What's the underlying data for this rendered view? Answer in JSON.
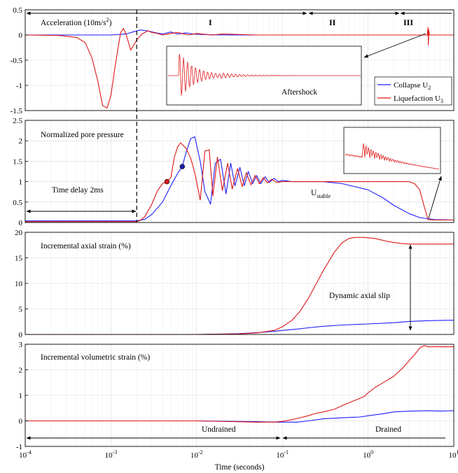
{
  "chart_data": [
    {
      "panel": 1,
      "type": "line",
      "xscale": "log",
      "xlim": [
        0.0001,
        10
      ],
      "ylim": [
        -1.5,
        0.5
      ],
      "yticks": [
        -1.5,
        -1,
        -0.5,
        0,
        0.5
      ],
      "ytick_labels": [
        "-1.5",
        "-1",
        "-0.5",
        "0",
        "0.5"
      ],
      "ylabel_text": "Acceleration (10m/s",
      "ylabel_sup": "2",
      "ylabel_tail": ")",
      "stage_labels": [
        "I",
        "II",
        "III"
      ],
      "stage_bounds": [
        0.0001,
        0.2,
        2.5,
        10
      ],
      "inset_label": "Aftershock",
      "legend": [
        {
          "name": "Collapse U",
          "sub": "2",
          "color": "#1f1fff"
        },
        {
          "name": "Liquefaction U",
          "sub": "3",
          "color": "#e01818"
        }
      ],
      "series": [
        {
          "name": "Collapse U2",
          "color": "#1f1fff",
          "x": [
            0.0001,
            0.001,
            0.0015,
            0.0018,
            0.0022,
            0.0027,
            0.0032,
            0.004,
            0.005,
            0.006,
            0.0075,
            0.009,
            0.012,
            0.02,
            0.05,
            0.1,
            1,
            10
          ],
          "y": [
            0,
            0,
            0.02,
            0.06,
            0.1,
            0.08,
            0.05,
            0.02,
            0.06,
            0.02,
            0.04,
            0.02,
            0.01,
            0,
            0,
            0,
            0,
            0
          ]
        },
        {
          "name": "Liquefaction U3",
          "color": "#e01818",
          "x": [
            0.0001,
            0.00025,
            0.0004,
            0.0005,
            0.0006,
            0.0007,
            0.0008,
            0.0009,
            0.001,
            0.0011,
            0.0012,
            0.0013,
            0.0014,
            0.0015,
            0.0017,
            0.002,
            0.0023,
            0.0027,
            0.003,
            0.0035,
            0.004,
            0.005,
            0.006,
            0.008,
            0.01,
            0.015,
            0.02,
            0.05,
            0.1,
            0.2,
            1,
            4.9,
            5.0,
            5.05,
            5.1,
            5.2,
            10
          ],
          "y": [
            0,
            -0.01,
            -0.05,
            -0.15,
            -0.45,
            -0.9,
            -1.4,
            -1.45,
            -1.2,
            -0.7,
            -0.3,
            0.05,
            0.13,
            0.02,
            -0.3,
            -0.1,
            0.02,
            0.08,
            0.05,
            0.03,
            0.0,
            0.03,
            0.05,
            0.0,
            0.03,
            0.0,
            0.02,
            0.0,
            0.0,
            0.0,
            0.0,
            0.0,
            0.15,
            -0.2,
            0.1,
            0.0,
            0.0
          ]
        }
      ]
    },
    {
      "panel": 2,
      "type": "line",
      "xscale": "log",
      "xlim": [
        0.0001,
        10
      ],
      "ylim": [
        0,
        2.5
      ],
      "yticks": [
        0,
        0.5,
        1,
        1.5,
        2,
        2.5
      ],
      "ytick_labels": [
        "0",
        "0.5",
        "1",
        "1.5",
        "2",
        "2.5"
      ],
      "ylabel_text": "Normalized pore pressure",
      "annotation_delay": "Time delay 2ms",
      "annotation_stable": "U",
      "annotation_stable_sub": "stable",
      "markers": [
        {
          "x": 0.0045,
          "y": 1.0,
          "color": "#e01818"
        },
        {
          "x": 0.0068,
          "y": 1.37,
          "color": "#1a1aa8"
        }
      ],
      "series": [
        {
          "name": "Collapse U2",
          "color": "#1f1fff",
          "x": [
            0.0001,
            0.002,
            0.0025,
            0.003,
            0.004,
            0.005,
            0.006,
            0.0068,
            0.0075,
            0.0085,
            0.0095,
            0.011,
            0.0125,
            0.0145,
            0.0165,
            0.019,
            0.022,
            0.025,
            0.028,
            0.032,
            0.036,
            0.04,
            0.045,
            0.05,
            0.056,
            0.063,
            0.07,
            0.08,
            0.09,
            0.1,
            0.13,
            0.2,
            0.3,
            0.5,
            1.0,
            1.5,
            2.0,
            3.0,
            4.0,
            6.0,
            10
          ],
          "y": [
            0.04,
            0.04,
            0.08,
            0.2,
            0.5,
            0.9,
            1.2,
            1.37,
            1.7,
            2.05,
            2.1,
            1.5,
            0.75,
            0.45,
            1.45,
            1.55,
            0.7,
            1.45,
            0.9,
            1.35,
            0.9,
            1.25,
            0.95,
            1.15,
            0.95,
            1.12,
            0.98,
            1.08,
            1.0,
            1.03,
            1.0,
            1.0,
            1.0,
            0.95,
            0.8,
            0.6,
            0.42,
            0.22,
            0.12,
            0.07,
            0.06
          ]
        },
        {
          "name": "Liquefaction U3",
          "color": "#e01818",
          "x": [
            0.0001,
            0.002,
            0.0022,
            0.0025,
            0.003,
            0.0035,
            0.004,
            0.0045,
            0.005,
            0.0055,
            0.006,
            0.0065,
            0.0075,
            0.0085,
            0.0095,
            0.011,
            0.0125,
            0.014,
            0.0155,
            0.0175,
            0.02,
            0.023,
            0.026,
            0.03,
            0.034,
            0.038,
            0.043,
            0.048,
            0.054,
            0.06,
            0.067,
            0.075,
            0.085,
            0.1,
            0.2,
            1.0,
            2.0,
            3.0,
            3.5,
            4.0,
            4.5,
            5.0,
            6.0,
            10
          ],
          "y": [
            0.02,
            0.02,
            0.05,
            0.15,
            0.45,
            0.78,
            0.95,
            1.0,
            1.1,
            1.6,
            1.85,
            1.95,
            1.82,
            1.58,
            1.22,
            0.55,
            1.75,
            1.78,
            0.65,
            1.6,
            0.78,
            1.45,
            0.82,
            1.32,
            0.88,
            1.22,
            0.92,
            1.15,
            0.95,
            1.1,
            0.97,
            1.06,
            0.98,
            1.0,
            1.0,
            1.0,
            1.0,
            1.0,
            0.95,
            0.8,
            0.4,
            0.07,
            0.06,
            0.06
          ]
        }
      ]
    },
    {
      "panel": 3,
      "type": "line",
      "xscale": "log",
      "xlim": [
        0.0001,
        10
      ],
      "ylim": [
        0,
        20
      ],
      "yticks": [
        0,
        5,
        10,
        15,
        20
      ],
      "ytick_labels": [
        "0",
        "5",
        "10",
        "15",
        "20"
      ],
      "ylabel_text": "Incremental axial strain (%)",
      "annotation": "Dynamic axial slip",
      "series": [
        {
          "name": "Collapse U2",
          "color": "#1f1fff",
          "x": [
            0.0001,
            0.01,
            0.03,
            0.05,
            0.08,
            0.1,
            0.15,
            0.2,
            0.3,
            0.5,
            1.0,
            2.0,
            3.0,
            5.0,
            10
          ],
          "y": [
            0,
            0,
            0.15,
            0.35,
            0.6,
            0.8,
            1.05,
            1.3,
            1.6,
            1.85,
            2.05,
            2.3,
            2.55,
            2.7,
            2.8
          ]
        },
        {
          "name": "Liquefaction U3",
          "color": "#e01818",
          "x": [
            0.0001,
            0.01,
            0.03,
            0.05,
            0.08,
            0.1,
            0.13,
            0.16,
            0.2,
            0.25,
            0.3,
            0.4,
            0.5,
            0.6,
            0.7,
            0.9,
            1.2,
            1.6,
            2.0,
            2.5,
            3.0,
            5.0,
            10
          ],
          "y": [
            0,
            0,
            0.1,
            0.3,
            0.8,
            1.5,
            2.8,
            4.5,
            7.0,
            10.0,
            12.5,
            16.0,
            18.0,
            18.8,
            19.0,
            19.0,
            18.8,
            18.3,
            18.0,
            17.8,
            17.7,
            17.7,
            17.7
          ]
        }
      ]
    },
    {
      "panel": 4,
      "type": "line",
      "xscale": "log",
      "xlim": [
        0.0001,
        10
      ],
      "ylim": [
        -1,
        3
      ],
      "yticks": [
        -1,
        0,
        1,
        2,
        3
      ],
      "ytick_labels": [
        "-1",
        "0",
        "1",
        "2",
        "3"
      ],
      "ylabel_text": "Incremental volumetric strain (%)",
      "annotation_undrained": "Undrained",
      "annotation_drained": "Drained",
      "xticks": [
        0.0001,
        0.001,
        0.01,
        0.1,
        1,
        10
      ],
      "xtick_base": [
        "10",
        "10",
        "10",
        "10",
        "10",
        "10"
      ],
      "xtick_exp": [
        "-4",
        "-3",
        "-2",
        "-1",
        "0",
        "1"
      ],
      "xlabel": "Time (seconds)",
      "series": [
        {
          "name": "Collapse U2",
          "color": "#1f1fff",
          "x": [
            0.0001,
            0.01,
            0.05,
            0.08,
            0.1,
            0.15,
            0.2,
            0.3,
            0.5,
            0.8,
            1.0,
            1.5,
            2.0,
            3.0,
            5.0,
            7.0,
            10
          ],
          "y": [
            0,
            0,
            -0.03,
            -0.05,
            -0.05,
            -0.05,
            0.0,
            0.08,
            0.12,
            0.15,
            0.2,
            0.28,
            0.35,
            0.38,
            0.4,
            0.38,
            0.4
          ]
        },
        {
          "name": "Liquefaction U3",
          "color": "#e01818",
          "x": [
            0.0001,
            0.01,
            0.05,
            0.08,
            0.1,
            0.13,
            0.16,
            0.2,
            0.25,
            0.3,
            0.4,
            0.5,
            0.7,
            0.9,
            1.0,
            1.2,
            1.5,
            2.0,
            2.5,
            3.0,
            3.5,
            4.0,
            4.5,
            5.0,
            6.0,
            8.0,
            10
          ],
          "y": [
            0,
            0,
            -0.05,
            -0.05,
            -0.02,
            0.05,
            0.12,
            0.2,
            0.3,
            0.35,
            0.45,
            0.6,
            0.8,
            0.95,
            1.1,
            1.3,
            1.5,
            1.75,
            2.05,
            2.35,
            2.6,
            2.85,
            2.95,
            2.9,
            2.9,
            2.9,
            2.9
          ]
        }
      ]
    }
  ]
}
